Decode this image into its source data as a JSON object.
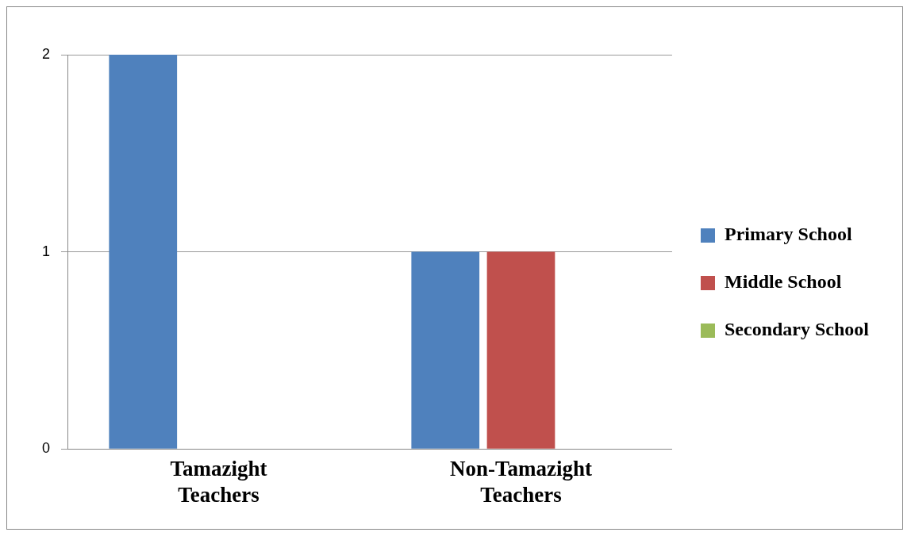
{
  "chart_data": {
    "type": "bar",
    "categories": [
      "Tamazight Teachers",
      "Non-Tamazight Teachers"
    ],
    "series": [
      {
        "name": "Primary School",
        "color": "#4f81bd",
        "values": [
          2,
          1
        ]
      },
      {
        "name": "Middle School",
        "color": "#c0504d",
        "values": [
          0,
          1
        ]
      },
      {
        "name": "Secondary School",
        "color": "#9bbb59",
        "values": [
          0,
          0
        ]
      }
    ],
    "ylim": [
      0,
      2
    ],
    "yticks": [
      0,
      1,
      2
    ],
    "grid": "y",
    "legend": "right"
  }
}
